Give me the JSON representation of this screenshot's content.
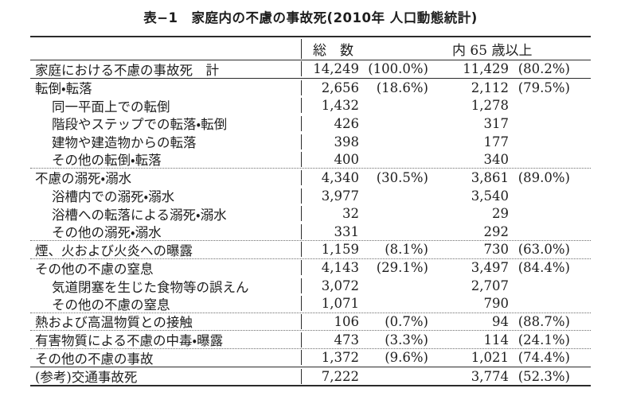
{
  "title": "表−1　家庭内の不慮の事故死(2010年 人口動態統計)",
  "colors": {
    "background": "#ffffff",
    "text": "#1e1e1e",
    "rule_line": "#2b2b2b",
    "dotted_line": "#6e6e6e"
  },
  "table": {
    "header": {
      "total": "総　数",
      "over65": "内 65 歳以上"
    },
    "rows": [
      {
        "label": "家庭における不慮の事故死　計",
        "indent": 0,
        "n1": "14,249",
        "p1": "(100.0%)",
        "n2": "11,429",
        "p2": "(80.2%)",
        "sep": "solid"
      },
      {
        "label": "転倒・転落",
        "indent": 0,
        "n1": "2,656",
        "p1": "(18.6%)",
        "n2": "2,112",
        "p2": "(79.5%)",
        "sep": "none"
      },
      {
        "label": "同一平面上での転倒",
        "indent": 1,
        "n1": "1,432",
        "p1": "",
        "n2": "1,278",
        "p2": "",
        "sep": "none"
      },
      {
        "label": "階段やステップでの転落・転倒",
        "indent": 1,
        "n1": "426",
        "p1": "",
        "n2": "317",
        "p2": "",
        "sep": "none"
      },
      {
        "label": "建物や建造物からの転落",
        "indent": 1,
        "n1": "398",
        "p1": "",
        "n2": "177",
        "p2": "",
        "sep": "none"
      },
      {
        "label": "その他の転倒・転落",
        "indent": 1,
        "n1": "400",
        "p1": "",
        "n2": "340",
        "p2": "",
        "sep": "dotted"
      },
      {
        "label": "不慮の溺死・溺水",
        "indent": 0,
        "n1": "4,340",
        "p1": "(30.5%)",
        "n2": "3,861",
        "p2": "(89.0%)",
        "sep": "none"
      },
      {
        "label": "浴槽内での溺死・溺水",
        "indent": 1,
        "n1": "3,977",
        "p1": "",
        "n2": "3,540",
        "p2": "",
        "sep": "none"
      },
      {
        "label": "浴槽への転落による溺死・溺水",
        "indent": 1,
        "n1": "32",
        "p1": "",
        "n2": "29",
        "p2": "",
        "sep": "none"
      },
      {
        "label": "その他の溺死・溺水",
        "indent": 1,
        "n1": "331",
        "p1": "",
        "n2": "292",
        "p2": "",
        "sep": "dotted"
      },
      {
        "label": "煙、火および火炎への曝露",
        "indent": 0,
        "n1": "1,159",
        "p1": "(8.1%)",
        "n2": "730",
        "p2": "(63.0%)",
        "sep": "dotted"
      },
      {
        "label": "その他の不慮の窒息",
        "indent": 0,
        "n1": "4,143",
        "p1": "(29.1%)",
        "n2": "3,497",
        "p2": "(84.4%)",
        "sep": "none"
      },
      {
        "label": "気道閉塞を生じた食物等の誤えん",
        "indent": 1,
        "n1": "3,072",
        "p1": "",
        "n2": "2,707",
        "p2": "",
        "sep": "none"
      },
      {
        "label": "その他の不慮の窒息",
        "indent": 1,
        "n1": "1,071",
        "p1": "",
        "n2": "790",
        "p2": "",
        "sep": "dotted"
      },
      {
        "label": "熱および高温物質との接触",
        "indent": 0,
        "n1": "106",
        "p1": "(0.7%)",
        "n2": "94",
        "p2": "(88.7%)",
        "sep": "dotted"
      },
      {
        "label": "有害物質による不慮の中毒・曝露",
        "indent": 0,
        "n1": "473",
        "p1": "(3.3%)",
        "n2": "114",
        "p2": "(24.1%)",
        "sep": "dotted"
      },
      {
        "label": "その他の不慮の事故",
        "indent": 0,
        "n1": "1,372",
        "p1": "(9.6%)",
        "n2": "1,021",
        "p2": "(74.4%)",
        "sep": "solid"
      },
      {
        "label": "(参考)交通事故死",
        "indent": 0,
        "n1": "7,222",
        "p1": "",
        "n2": "3,774",
        "p2": "(52.3%)",
        "sep": "none"
      }
    ]
  }
}
